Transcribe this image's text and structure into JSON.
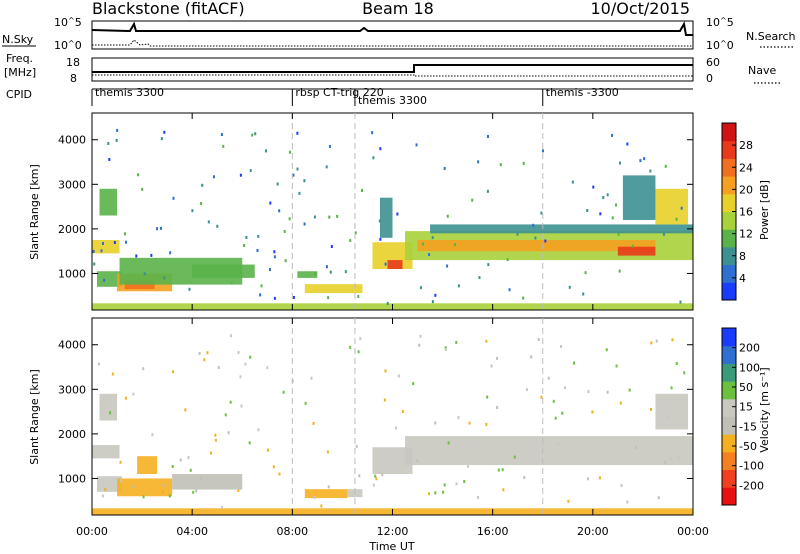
{
  "header": {
    "station": "Blackstone (fitACF)",
    "beam": "Beam 18",
    "date": "10/Oct/2015"
  },
  "summary": {
    "nsky_label": "N.Sky",
    "nsearch_label": "N.Search",
    "exp_ticks": [
      {
        "base": "10",
        "exp": "5"
      },
      {
        "base": "10",
        "exp": "0"
      }
    ],
    "freq_label": "Freq.",
    "freq_unit": "[MHz]",
    "nave_label": "Nave",
    "freq_ticks": [
      "18",
      "8"
    ],
    "nave_ticks": [
      "60",
      "0"
    ],
    "cpid_label": "CPID",
    "cpid_segments": [
      {
        "label": "themis 3300",
        "start": 0
      },
      {
        "label": "rbsp CT-trig 220",
        "start": 8.0
      },
      {
        "label": "themis 3300",
        "start": 10.5
      },
      {
        "label": "themis -3300",
        "start": 18.0
      }
    ]
  },
  "chart_data": [
    {
      "type": "heatmap",
      "title": "Power",
      "x_hours": [
        0,
        24
      ],
      "xticks": [
        "00:00",
        "04:00",
        "08:00",
        "12:00",
        "16:00",
        "20:00",
        "00:00"
      ],
      "xlabel": "Time UT",
      "ylabel": "Slant Range [km]",
      "ylim": [
        180,
        4600
      ],
      "yticks": [
        "1000",
        "2000",
        "3000",
        "4000"
      ],
      "colorbar": {
        "label": "Power [dB]",
        "ticks": [
          "4",
          "8",
          "12",
          "16",
          "20",
          "24",
          "28"
        ],
        "range": [
          0,
          30
        ],
        "colors": [
          "#1a3cff",
          "#2f6fd0",
          "#3d9090",
          "#5ab34a",
          "#a8d23a",
          "#e8d02a",
          "#f5a020",
          "#f07020",
          "#e83a1a",
          "#d01414"
        ]
      },
      "patches": [
        {
          "t0": 0.0,
          "t1": 1.1,
          "r0": 1450,
          "r1": 1750,
          "v": 16
        },
        {
          "t0": 0.3,
          "t1": 1.0,
          "r0": 2300,
          "r1": 2900,
          "v": 9
        },
        {
          "t0": 0.2,
          "t1": 1.2,
          "r0": 700,
          "r1": 1050,
          "v": 10
        },
        {
          "t0": 1.0,
          "t1": 3.2,
          "r0": 600,
          "r1": 1000,
          "v": 18
        },
        {
          "t0": 1.3,
          "t1": 2.5,
          "r0": 650,
          "r1": 850,
          "v": 23
        },
        {
          "t0": 1.1,
          "t1": 6.0,
          "r0": 750,
          "r1": 1350,
          "v": 11
        },
        {
          "t0": 4.0,
          "t1": 6.5,
          "r0": 900,
          "r1": 1200,
          "v": 9
        },
        {
          "t0": 8.5,
          "t1": 10.8,
          "r0": 560,
          "r1": 760,
          "v": 15
        },
        {
          "t0": 8.2,
          "t1": 9.0,
          "r0": 900,
          "r1": 1050,
          "v": 10
        },
        {
          "t0": 11.2,
          "t1": 12.8,
          "r0": 1100,
          "r1": 1700,
          "v": 16
        },
        {
          "t0": 11.8,
          "t1": 12.4,
          "r0": 1100,
          "r1": 1300,
          "v": 24
        },
        {
          "t0": 11.5,
          "t1": 12.0,
          "r0": 1800,
          "r1": 2700,
          "v": 8
        },
        {
          "t0": 12.5,
          "t1": 24.0,
          "r0": 1300,
          "r1": 1950,
          "v": 14
        },
        {
          "t0": 13.0,
          "t1": 22.5,
          "r0": 1500,
          "r1": 1750,
          "v": 20
        },
        {
          "t0": 21.0,
          "t1": 22.5,
          "r0": 1400,
          "r1": 1600,
          "v": 26
        },
        {
          "t0": 13.5,
          "t1": 24.0,
          "r0": 1900,
          "r1": 2100,
          "v": 7
        },
        {
          "t0": 22.5,
          "t1": 23.8,
          "r0": 2100,
          "r1": 2900,
          "v": 17
        },
        {
          "t0": 21.2,
          "t1": 22.5,
          "r0": 2200,
          "r1": 3200,
          "v": 8
        },
        {
          "t0": 0.0,
          "t1": 24.0,
          "r0": 180,
          "r1": 330,
          "v": 12
        }
      ]
    },
    {
      "type": "heatmap",
      "title": "Velocity",
      "x_hours": [
        0,
        24
      ],
      "xticks": [
        "00:00",
        "04:00",
        "08:00",
        "12:00",
        "16:00",
        "20:00",
        "00:00"
      ],
      "xlabel": "Time UT",
      "ylabel": "Slant Range [km]",
      "ylim": [
        180,
        4600
      ],
      "yticks": [
        "1000",
        "2000",
        "3000",
        "4000"
      ],
      "colorbar": {
        "label": "Velocity [m s⁻¹]",
        "ticks": [
          "200",
          "100",
          "50",
          "15",
          "-15",
          "-50",
          "-100",
          "-200"
        ],
        "range": [
          -250,
          250
        ],
        "colors": [
          "#e81010",
          "#f04020",
          "#f58020",
          "#f5b020",
          "#c0c0b8",
          "#c8c8c0",
          "#6cc040",
          "#3a9a7a",
          "#2f6fd0",
          "#1a3cff"
        ]
      },
      "patches": [
        {
          "t0": 0.0,
          "t1": 1.1,
          "r0": 1450,
          "r1": 1750,
          "v": 0
        },
        {
          "t0": 0.3,
          "t1": 1.0,
          "r0": 2300,
          "r1": 2900,
          "v": 0
        },
        {
          "t0": 0.2,
          "t1": 1.2,
          "r0": 700,
          "r1": 1050,
          "v": 0
        },
        {
          "t0": 1.0,
          "t1": 3.2,
          "r0": 600,
          "r1": 1000,
          "v": -60
        },
        {
          "t0": 1.8,
          "t1": 2.6,
          "r0": 1100,
          "r1": 1500,
          "v": -70
        },
        {
          "t0": 3.2,
          "t1": 6.0,
          "r0": 750,
          "r1": 1100,
          "v": -40
        },
        {
          "t0": 8.5,
          "t1": 10.2,
          "r0": 560,
          "r1": 760,
          "v": -60
        },
        {
          "t0": 10.2,
          "t1": 10.8,
          "r0": 580,
          "r1": 760,
          "v": 40
        },
        {
          "t0": 11.2,
          "t1": 12.8,
          "r0": 1100,
          "r1": 1700,
          "v": 0
        },
        {
          "t0": 12.5,
          "t1": 24.0,
          "r0": 1300,
          "r1": 1950,
          "v": 0
        },
        {
          "t0": 22.5,
          "t1": 23.8,
          "r0": 2100,
          "r1": 2900,
          "v": 0
        },
        {
          "t0": 0.0,
          "t1": 24.0,
          "r0": 180,
          "r1": 330,
          "v": -60
        }
      ]
    }
  ]
}
